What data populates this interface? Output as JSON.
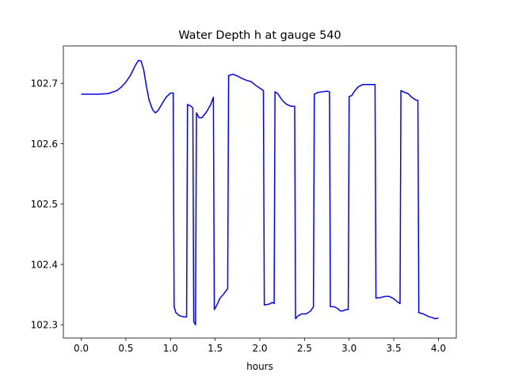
{
  "chart_data": {
    "type": "line",
    "title": "Water Depth h at gauge 540",
    "xlabel": "hours",
    "ylabel": "",
    "xlim": [
      -0.2,
      4.2
    ],
    "ylim": [
      102.278,
      102.762
    ],
    "x_ticks": [
      0.0,
      0.5,
      1.0,
      1.5,
      2.0,
      2.5,
      3.0,
      3.5,
      4.0
    ],
    "x_tick_labels": [
      "0.0",
      "0.5",
      "1.0",
      "1.5",
      "2.0",
      "2.5",
      "3.0",
      "3.5",
      "4.0"
    ],
    "y_ticks": [
      102.3,
      102.4,
      102.5,
      102.6,
      102.7
    ],
    "y_tick_labels": [
      "102.3",
      "102.4",
      "102.5",
      "102.6",
      "102.7"
    ],
    "grid": false,
    "series": [
      {
        "color": "#0000ff",
        "points": [
          [
            0.0,
            102.682
          ],
          [
            0.1,
            102.682
          ],
          [
            0.2,
            102.682
          ],
          [
            0.3,
            102.683
          ],
          [
            0.4,
            102.688
          ],
          [
            0.45,
            102.694
          ],
          [
            0.5,
            102.702
          ],
          [
            0.55,
            102.713
          ],
          [
            0.6,
            102.728
          ],
          [
            0.64,
            102.738
          ],
          [
            0.67,
            102.737
          ],
          [
            0.7,
            102.722
          ],
          [
            0.73,
            102.695
          ],
          [
            0.76,
            102.672
          ],
          [
            0.8,
            102.656
          ],
          [
            0.83,
            102.651
          ],
          [
            0.86,
            102.655
          ],
          [
            0.9,
            102.665
          ],
          [
            0.95,
            102.677
          ],
          [
            1.0,
            102.684
          ],
          [
            1.03,
            102.684
          ],
          [
            1.04,
            102.33
          ],
          [
            1.06,
            102.32
          ],
          [
            1.1,
            102.315
          ],
          [
            1.15,
            102.313
          ],
          [
            1.18,
            102.313
          ],
          [
            1.19,
            102.665
          ],
          [
            1.23,
            102.662
          ],
          [
            1.25,
            102.659
          ],
          [
            1.26,
            102.305
          ],
          [
            1.28,
            102.3
          ],
          [
            1.29,
            102.651
          ],
          [
            1.32,
            102.643
          ],
          [
            1.35,
            102.643
          ],
          [
            1.4,
            102.652
          ],
          [
            1.45,
            102.665
          ],
          [
            1.48,
            102.677
          ],
          [
            1.49,
            102.325
          ],
          [
            1.52,
            102.333
          ],
          [
            1.55,
            102.343
          ],
          [
            1.6,
            102.352
          ],
          [
            1.64,
            102.36
          ],
          [
            1.65,
            102.713
          ],
          [
            1.7,
            102.715
          ],
          [
            1.75,
            102.712
          ],
          [
            1.8,
            102.708
          ],
          [
            1.85,
            102.705
          ],
          [
            1.9,
            102.703
          ],
          [
            1.95,
            102.697
          ],
          [
            2.0,
            102.692
          ],
          [
            2.04,
            102.688
          ],
          [
            2.05,
            102.333
          ],
          [
            2.1,
            102.334
          ],
          [
            2.14,
            102.337
          ],
          [
            2.16,
            102.335
          ],
          [
            2.17,
            102.686
          ],
          [
            2.2,
            102.683
          ],
          [
            2.25,
            102.672
          ],
          [
            2.3,
            102.665
          ],
          [
            2.35,
            102.662
          ],
          [
            2.39,
            102.662
          ],
          [
            2.4,
            102.31
          ],
          [
            2.43,
            102.315
          ],
          [
            2.47,
            102.318
          ],
          [
            2.52,
            102.318
          ],
          [
            2.57,
            102.323
          ],
          [
            2.6,
            102.33
          ],
          [
            2.61,
            102.682
          ],
          [
            2.65,
            102.685
          ],
          [
            2.7,
            102.686
          ],
          [
            2.75,
            102.687
          ],
          [
            2.78,
            102.686
          ],
          [
            2.79,
            102.33
          ],
          [
            2.83,
            102.33
          ],
          [
            2.87,
            102.327
          ],
          [
            2.9,
            102.323
          ],
          [
            2.93,
            102.323
          ],
          [
            2.96,
            102.325
          ],
          [
            2.99,
            102.325
          ],
          [
            3.0,
            102.678
          ],
          [
            3.03,
            102.68
          ],
          [
            3.06,
            102.687
          ],
          [
            3.1,
            102.694
          ],
          [
            3.15,
            102.698
          ],
          [
            3.2,
            102.698
          ],
          [
            3.25,
            102.698
          ],
          [
            3.29,
            102.698
          ],
          [
            3.3,
            102.344
          ],
          [
            3.35,
            102.345
          ],
          [
            3.4,
            102.347
          ],
          [
            3.45,
            102.347
          ],
          [
            3.5,
            102.343
          ],
          [
            3.55,
            102.337
          ],
          [
            3.57,
            102.335
          ],
          [
            3.58,
            102.688
          ],
          [
            3.62,
            102.685
          ],
          [
            3.66,
            102.683
          ],
          [
            3.7,
            102.677
          ],
          [
            3.75,
            102.672
          ],
          [
            3.77,
            102.672
          ],
          [
            3.78,
            102.32
          ],
          [
            3.83,
            102.318
          ],
          [
            3.87,
            102.315
          ],
          [
            3.9,
            102.313
          ],
          [
            3.93,
            102.312
          ],
          [
            3.96,
            102.31
          ],
          [
            4.0,
            102.311
          ]
        ]
      }
    ]
  }
}
